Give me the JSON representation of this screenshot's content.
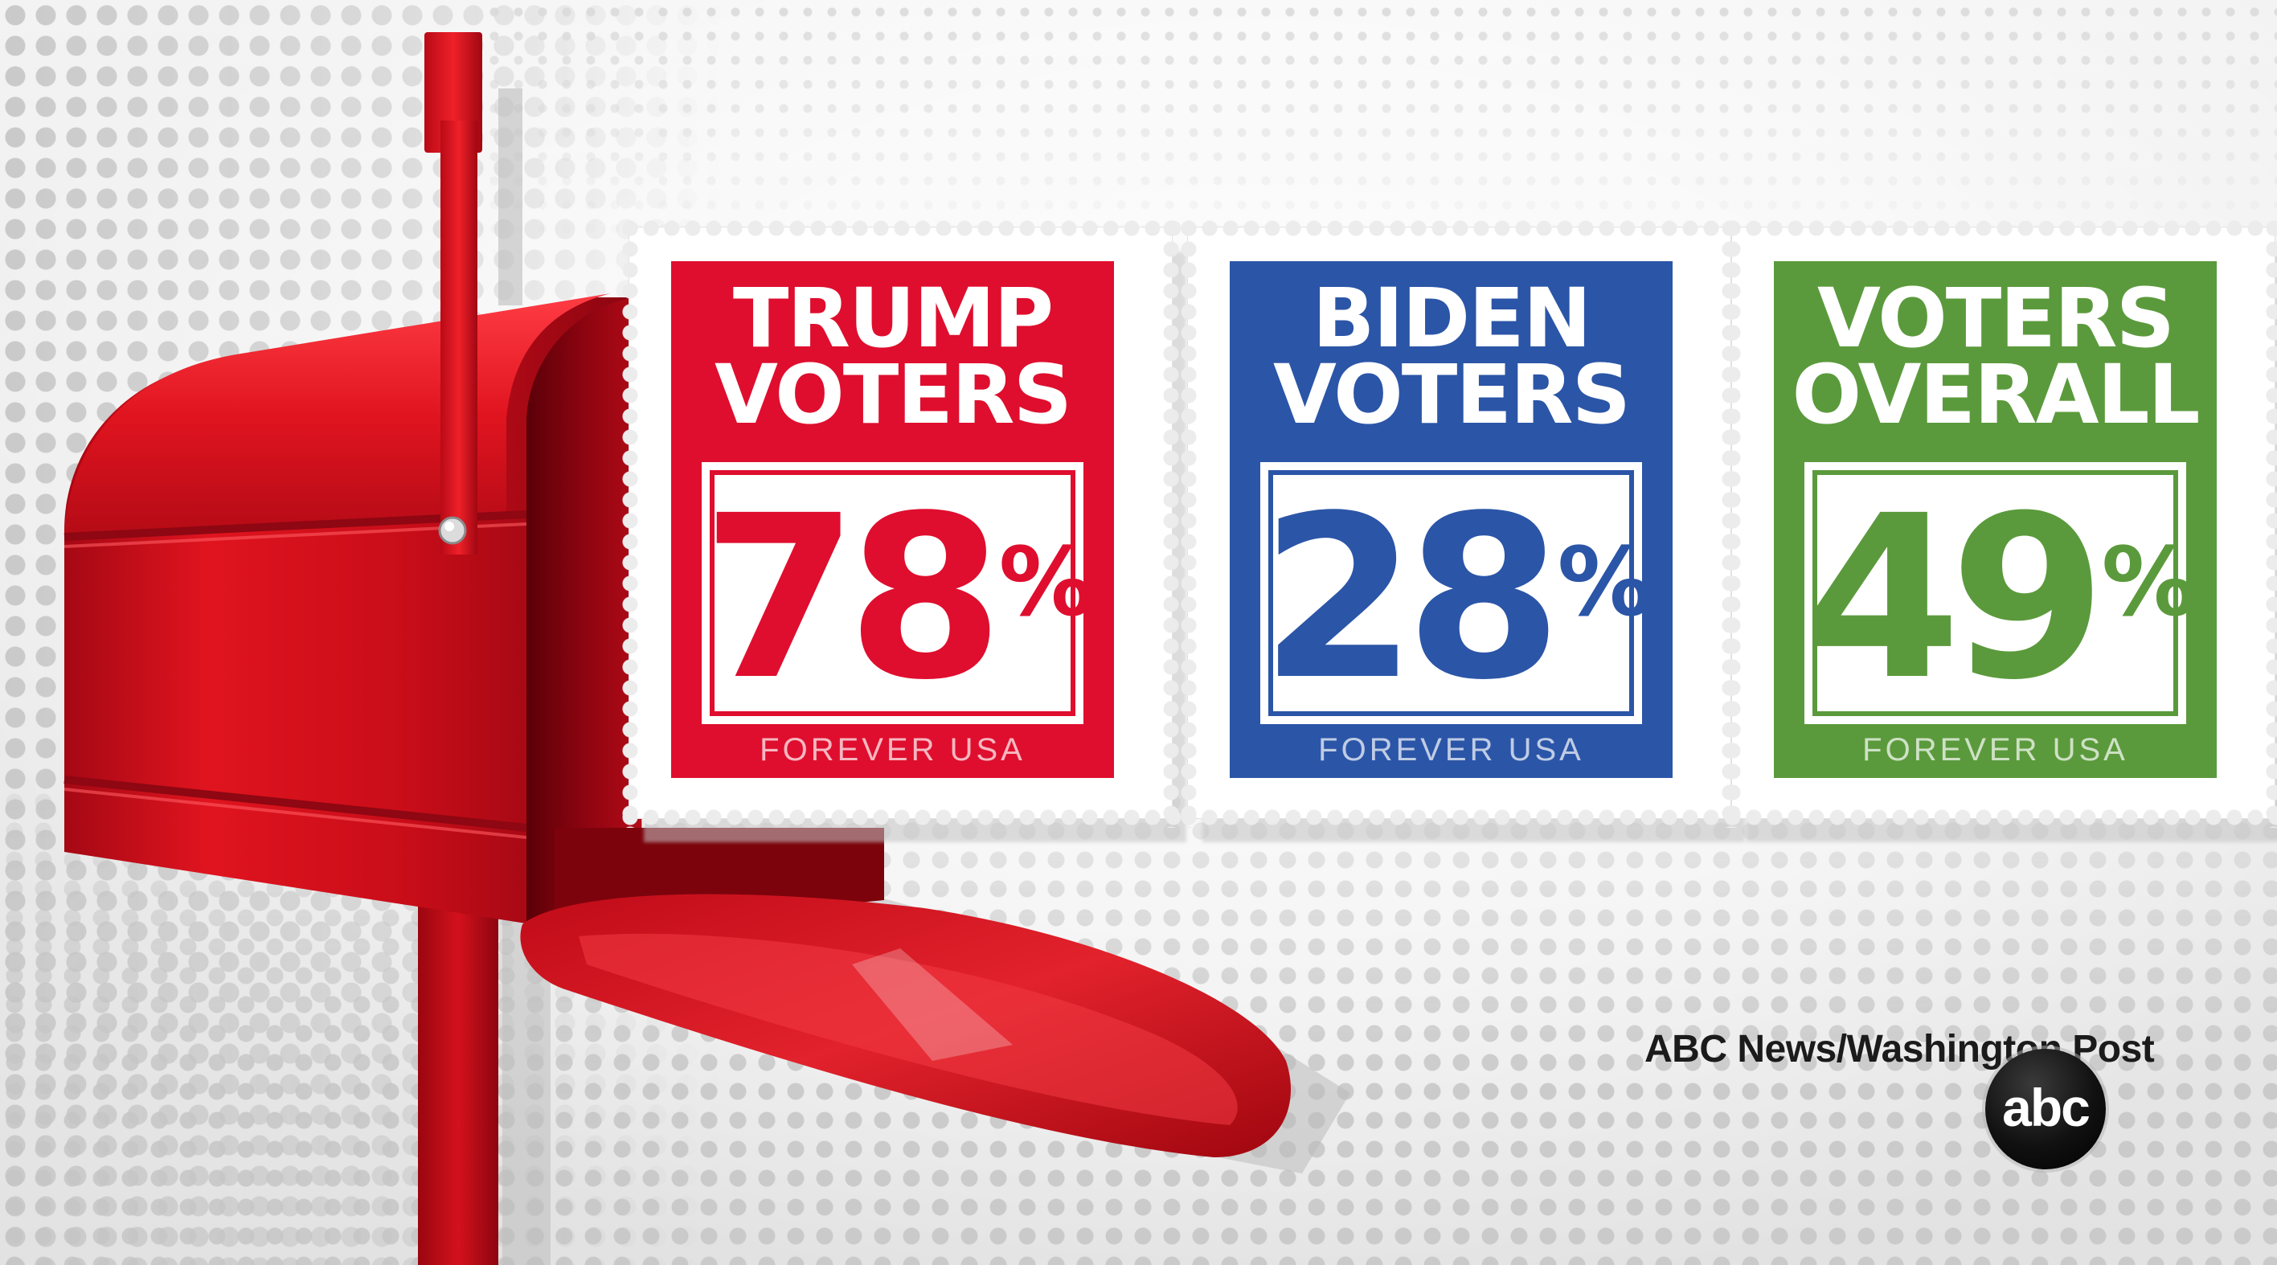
{
  "colors": {
    "trump_red": "#df0e2e",
    "biden_blue": "#2b55a7",
    "overall_green": "#5b9a3c",
    "mailbox_red": "#d9101c"
  },
  "stamps": [
    {
      "title": "TRUMP\nVOTERS",
      "value": "78",
      "unit": "%",
      "footer": "FOREVER USA",
      "color": "#df0e2e"
    },
    {
      "title": "BIDEN\nVOTERS",
      "value": "28",
      "unit": "%",
      "footer": "FOREVER USA",
      "color": "#2b55a7"
    },
    {
      "title": "VOTERS\nOVERALL",
      "value": "49",
      "unit": "%",
      "footer": "FOREVER USA",
      "color": "#5b9a3c"
    }
  ],
  "credit": {
    "source": "ABC News/Washington Post"
  },
  "logo": {
    "text": "abc"
  },
  "icons": {
    "mailbox": "mailbox-icon",
    "flag": "mailbox-flag-icon"
  }
}
